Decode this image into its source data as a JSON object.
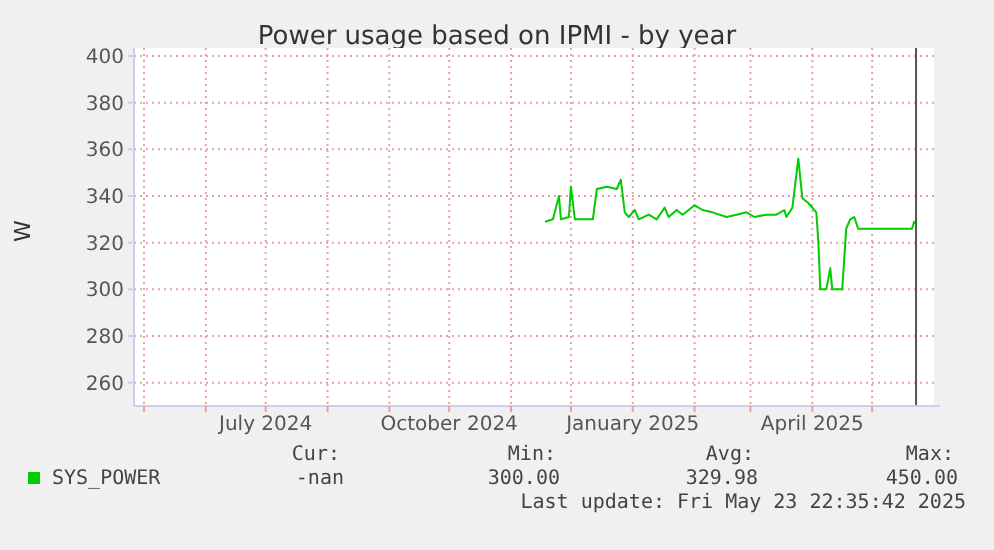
{
  "chart_data": {
    "type": "line",
    "title": "Power usage based on IPMI - by year",
    "ylabel": "W",
    "x": [
      "2024-11-18",
      "2024-11-22",
      "2024-11-25",
      "2024-11-26",
      "2024-11-30",
      "2024-12-01",
      "2024-12-03",
      "2024-12-07",
      "2024-12-12",
      "2024-12-14",
      "2024-12-19",
      "2024-12-24",
      "2024-12-26",
      "2024-12-28",
      "2024-12-30",
      "2025-01-02",
      "2025-01-04",
      "2025-01-09",
      "2025-01-13",
      "2025-01-17",
      "2025-01-19",
      "2025-01-23",
      "2025-01-26",
      "2025-02-01",
      "2025-02-05",
      "2025-02-10",
      "2025-02-17",
      "2025-02-22",
      "2025-02-27",
      "2025-03-03",
      "2025-03-09",
      "2025-03-14",
      "2025-03-18",
      "2025-03-19",
      "2025-03-22",
      "2025-03-25",
      "2025-03-27",
      "2025-03-30",
      "2025-04-03",
      "2025-04-04",
      "2025-04-05",
      "2025-04-08",
      "2025-04-10",
      "2025-04-11",
      "2025-04-16",
      "2025-04-18",
      "2025-04-20",
      "2025-04-22",
      "2025-04-24",
      "2025-05-04",
      "2025-05-18",
      "2025-05-21",
      "2025-05-22",
      "2025-05-23"
    ],
    "series": [
      {
        "name": "SYS_POWER",
        "color": "#00cc00",
        "values": [
          329,
          330,
          340,
          330,
          331,
          344,
          330,
          330,
          330,
          343,
          344,
          343,
          347,
          333,
          331,
          334,
          330,
          332,
          330,
          335,
          331,
          334,
          332,
          336,
          334,
          333,
          331,
          332,
          333,
          331,
          332,
          332,
          334,
          331,
          335,
          356,
          339,
          337,
          333,
          321,
          300,
          300,
          309,
          300,
          300,
          326,
          330,
          331,
          326,
          326,
          326,
          326,
          329,
          328
        ]
      }
    ],
    "xlim": [
      "2024-04-26",
      "2025-06-01"
    ],
    "xticks": [
      {
        "value": "2024-05-01",
        "label": null
      },
      {
        "value": "2024-06-01",
        "label": null
      },
      {
        "value": "2024-07-01",
        "label": "July 2024"
      },
      {
        "value": "2024-08-01",
        "label": null
      },
      {
        "value": "2024-09-01",
        "label": null
      },
      {
        "value": "2024-10-01",
        "label": "October 2024"
      },
      {
        "value": "2024-11-01",
        "label": null
      },
      {
        "value": "2024-12-01",
        "label": null
      },
      {
        "value": "2025-01-01",
        "label": "January 2025"
      },
      {
        "value": "2025-02-01",
        "label": null
      },
      {
        "value": "2025-03-01",
        "label": null
      },
      {
        "value": "2025-04-01",
        "label": "April 2025"
      },
      {
        "value": "2025-05-01",
        "label": null
      }
    ],
    "ylim": [
      250,
      400
    ],
    "yticks": [
      260,
      280,
      300,
      320,
      340,
      360,
      380,
      400
    ],
    "grid": true,
    "legend": "bottom left",
    "ref_lines": [
      {
        "axis": "x",
        "value": "2025-05-23",
        "color": "#555555"
      }
    ],
    "annotations": [
      "Cur:",
      "Min:",
      "Avg:",
      "Max:",
      "-nan",
      "300.00",
      "329.98",
      "450.00",
      "Last update: Fri May 23 22:35:42 2025"
    ]
  }
}
